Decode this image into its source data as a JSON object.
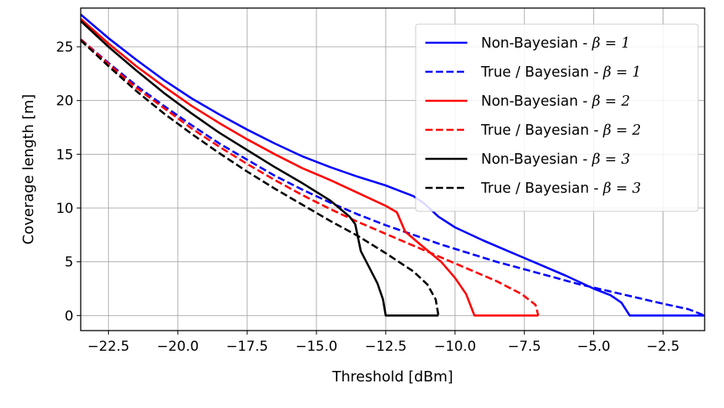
{
  "chart_data": {
    "type": "line",
    "xlabel": "Threshold [dBm]",
    "ylabel": "Coverage length [m]",
    "xlim": [
      -23.5,
      -1.0
    ],
    "ylim": [
      -1.4,
      28.6
    ],
    "x_ticks": [
      -22.5,
      -20.0,
      -17.5,
      -15.0,
      -12.5,
      -10.0,
      -7.5,
      -5.0,
      -2.5
    ],
    "x_tick_labels": [
      "−22.5",
      "−20.0",
      "−17.5",
      "−15.0",
      "−12.5",
      "−10.0",
      "−7.5",
      "−5.0",
      "−2.5"
    ],
    "y_ticks": [
      0,
      5,
      10,
      15,
      20,
      25
    ],
    "y_tick_labels": [
      "0",
      "5",
      "10",
      "15",
      "20",
      "25"
    ],
    "grid": true,
    "legend_position": "top-right",
    "series": [
      {
        "name": "Non-Bayesian - ",
        "beta_label": "β = 1",
        "color": "#0000ff",
        "style": "solid",
        "points": [
          [
            -23.5,
            28
          ],
          [
            -22.5,
            25.8
          ],
          [
            -21.5,
            23.8
          ],
          [
            -20.5,
            21.9
          ],
          [
            -19.5,
            20.2
          ],
          [
            -18.5,
            18.7
          ],
          [
            -17.5,
            17.3
          ],
          [
            -16.5,
            16
          ],
          [
            -15.5,
            14.8
          ],
          [
            -14.5,
            13.8
          ],
          [
            -13.5,
            12.9
          ],
          [
            -12.5,
            12.1
          ],
          [
            -12,
            11.6
          ],
          [
            -11.5,
            11.1
          ],
          [
            -11.1,
            10.4
          ],
          [
            -10.6,
            9.2
          ],
          [
            -10,
            8.2
          ],
          [
            -9,
            7
          ],
          [
            -8,
            5.9
          ],
          [
            -7,
            4.8
          ],
          [
            -6,
            3.7
          ],
          [
            -5,
            2.5
          ],
          [
            -4.4,
            1.9
          ],
          [
            -4,
            1.2
          ],
          [
            -3.7,
            0
          ],
          [
            -1.0,
            0
          ]
        ]
      },
      {
        "name": "True / Bayesian - ",
        "beta_label": "β = 1",
        "color": "#0000ff",
        "style": "dashed",
        "points": [
          [
            -23.5,
            25.7
          ],
          [
            -22.5,
            23.5
          ],
          [
            -21.5,
            21.4
          ],
          [
            -20.5,
            19.5
          ],
          [
            -19.5,
            17.7
          ],
          [
            -18.5,
            16
          ],
          [
            -17.5,
            14.5
          ],
          [
            -16.5,
            13
          ],
          [
            -15.5,
            11.7
          ],
          [
            -14.5,
            10.5
          ],
          [
            -13.5,
            9.4
          ],
          [
            -12.5,
            8.4
          ],
          [
            -11.5,
            7.5
          ],
          [
            -10.5,
            6.6
          ],
          [
            -9.5,
            5.8
          ],
          [
            -8.5,
            5
          ],
          [
            -7.5,
            4.3
          ],
          [
            -6.5,
            3.6
          ],
          [
            -5.5,
            2.9
          ],
          [
            -4.5,
            2.3
          ],
          [
            -3.5,
            1.7
          ],
          [
            -2.5,
            1.1
          ],
          [
            -1.6,
            0.6
          ],
          [
            -1.0,
            0
          ]
        ]
      },
      {
        "name": "Non-Bayesian - ",
        "beta_label": "β = 2",
        "color": "#ff0000",
        "style": "solid",
        "points": [
          [
            -23.5,
            27.6
          ],
          [
            -22.5,
            25.3
          ],
          [
            -21.5,
            23.2
          ],
          [
            -20.5,
            21.3
          ],
          [
            -19.5,
            19.5
          ],
          [
            -18.5,
            17.9
          ],
          [
            -17.5,
            16.4
          ],
          [
            -16.5,
            15
          ],
          [
            -15.5,
            13.7
          ],
          [
            -14.5,
            12.6
          ],
          [
            -13.5,
            11.4
          ],
          [
            -12.5,
            10.2
          ],
          [
            -12.1,
            9.6
          ],
          [
            -11.8,
            7.8
          ],
          [
            -11.2,
            6.5
          ],
          [
            -10.5,
            5
          ],
          [
            -10,
            3.5
          ],
          [
            -9.6,
            2
          ],
          [
            -9.3,
            0
          ],
          [
            -7.0,
            0
          ]
        ]
      },
      {
        "name": "True / Bayesian - ",
        "beta_label": "β = 2",
        "color": "#ff0000",
        "style": "dashed",
        "points": [
          [
            -23.5,
            25.7
          ],
          [
            -22.5,
            23.4
          ],
          [
            -21.5,
            21.2
          ],
          [
            -20.5,
            19.3
          ],
          [
            -19.5,
            17.4
          ],
          [
            -18.5,
            15.7
          ],
          [
            -17.5,
            14.1
          ],
          [
            -16.5,
            12.6
          ],
          [
            -15.5,
            11.2
          ],
          [
            -14.5,
            9.9
          ],
          [
            -13.5,
            8.7
          ],
          [
            -12.5,
            7.6
          ],
          [
            -11.5,
            6.5
          ],
          [
            -10.5,
            5.4
          ],
          [
            -9.5,
            4.3
          ],
          [
            -8.5,
            3.2
          ],
          [
            -7.6,
            2
          ],
          [
            -7.1,
            1
          ],
          [
            -7.0,
            0
          ]
        ]
      },
      {
        "name": "Non-Bayesian - ",
        "beta_label": "β = 3",
        "color": "#000000",
        "style": "solid",
        "points": [
          [
            -23.5,
            27.4
          ],
          [
            -22.5,
            25
          ],
          [
            -21.5,
            22.8
          ],
          [
            -20.5,
            20.7
          ],
          [
            -19.5,
            18.8
          ],
          [
            -18.5,
            17
          ],
          [
            -17.5,
            15.4
          ],
          [
            -16.5,
            13.8
          ],
          [
            -15.5,
            12.3
          ],
          [
            -14.5,
            10.7
          ],
          [
            -13.8,
            9.2
          ],
          [
            -13.6,
            8.5
          ],
          [
            -13.4,
            6
          ],
          [
            -13.1,
            4.5
          ],
          [
            -12.8,
            3
          ],
          [
            -12.6,
            1.5
          ],
          [
            -12.5,
            0
          ],
          [
            -10.6,
            0
          ]
        ]
      },
      {
        "name": "True / Bayesian - ",
        "beta_label": "β = 3",
        "color": "#000000",
        "style": "dashed",
        "points": [
          [
            -23.5,
            25.6
          ],
          [
            -22.5,
            23.2
          ],
          [
            -21.5,
            20.9
          ],
          [
            -20.5,
            18.8
          ],
          [
            -19.5,
            16.9
          ],
          [
            -18.5,
            15.1
          ],
          [
            -17.5,
            13.4
          ],
          [
            -16.5,
            11.8
          ],
          [
            -15.5,
            10.3
          ],
          [
            -14.5,
            8.8
          ],
          [
            -13.5,
            7.4
          ],
          [
            -12.5,
            5.8
          ],
          [
            -11.5,
            4.1
          ],
          [
            -11,
            2.9
          ],
          [
            -10.7,
            1.5
          ],
          [
            -10.6,
            0
          ]
        ]
      }
    ]
  }
}
